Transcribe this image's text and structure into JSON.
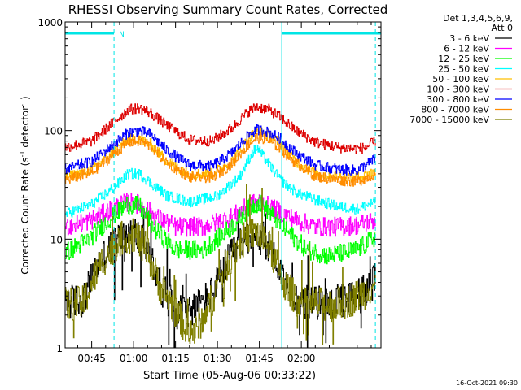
{
  "chart_data": {
    "type": "line",
    "title": "RHESSI Observing Summary Count Rates, Corrected",
    "xlabel": "Start Time (05-Aug-06 00:33:22)",
    "ylabel_main": "Corrected Count Rate (s",
    "ylabel_sup1": "-1",
    "ylabel_mid": " detector",
    "ylabel_sup2": "-1",
    "ylabel_end": ")",
    "y_scale": "log",
    "ylim": [
      1,
      1000
    ],
    "xlim_minutes": [
      35.5,
      148.5
    ],
    "y_ticks": [
      {
        "value": 1,
        "label": "1"
      },
      {
        "value": 10,
        "label": "10"
      },
      {
        "value": 100,
        "label": "100"
      },
      {
        "value": 1000,
        "label": "1000"
      }
    ],
    "x_ticks": [
      {
        "value": 45,
        "label": "00:45"
      },
      {
        "value": 60,
        "label": "01:00"
      },
      {
        "value": 75,
        "label": "01:15"
      },
      {
        "value": 90,
        "label": "01:30"
      },
      {
        "value": 105,
        "label": "01:45"
      },
      {
        "value": 120,
        "label": "02:00"
      }
    ],
    "legend_header": [
      "Det 1,3,4,5,6,9,",
      "Att 0"
    ],
    "timestamp": "16-Oct-2021 09:30",
    "annotation_label": "N",
    "annotation_color": "#00e5e5",
    "night_bars": [
      [
        35.5,
        53.0
      ],
      [
        113.0,
        148.5
      ]
    ],
    "dashed_lines": [
      53.0,
      146.5
    ],
    "solid_lines": [
      35.5,
      113.0
    ],
    "series": [
      {
        "name": "3 - 6 keV",
        "color": "#000000",
        "anchors": [
          [
            35.5,
            2.6
          ],
          [
            42,
            2.8
          ],
          [
            48,
            6.5
          ],
          [
            55,
            10.5
          ],
          [
            60,
            11.5
          ],
          [
            64,
            9
          ],
          [
            70,
            3.5
          ],
          [
            75,
            2.2
          ],
          [
            82,
            2.3
          ],
          [
            88,
            3.2
          ],
          [
            94,
            6.5
          ],
          [
            100,
            10.5
          ],
          [
            104,
            11.5
          ],
          [
            108,
            9
          ],
          [
            114,
            4
          ],
          [
            120,
            2.6
          ],
          [
            126,
            2.6
          ],
          [
            131,
            2.6
          ],
          [
            134,
            2.7
          ],
          [
            137,
            2.8
          ],
          [
            140,
            3.2
          ],
          [
            143,
            3.5
          ],
          [
            146.5,
            4.2
          ]
        ]
      },
      {
        "name": "6 - 12 keV",
        "color": "#ff00ff",
        "anchors": [
          [
            35.5,
            13
          ],
          [
            45,
            15
          ],
          [
            52,
            19
          ],
          [
            58,
            22
          ],
          [
            62,
            21
          ],
          [
            68,
            16
          ],
          [
            75,
            13
          ],
          [
            85,
            13
          ],
          [
            95,
            16
          ],
          [
            102,
            21
          ],
          [
            105,
            22
          ],
          [
            110,
            19
          ],
          [
            118,
            15
          ],
          [
            125,
            13
          ],
          [
            133,
            13
          ],
          [
            140,
            13.5
          ],
          [
            146.5,
            15
          ]
        ]
      },
      {
        "name": "12 - 25 keV",
        "color": "#00ff00",
        "anchors": [
          [
            35.5,
            7.5
          ],
          [
            44,
            10
          ],
          [
            52,
            16
          ],
          [
            58,
            21
          ],
          [
            62,
            20
          ],
          [
            68,
            12
          ],
          [
            75,
            8
          ],
          [
            85,
            8
          ],
          [
            95,
            13
          ],
          [
            102,
            20
          ],
          [
            105,
            22
          ],
          [
            110,
            16
          ],
          [
            116,
            11
          ],
          [
            122,
            8
          ],
          [
            130,
            7
          ],
          [
            140,
            8
          ],
          [
            146.5,
            10.5
          ]
        ]
      },
      {
        "name": "25 - 50 keV",
        "color": "#00ffff",
        "anchors": [
          [
            35.5,
            17
          ],
          [
            45,
            21
          ],
          [
            53,
            30
          ],
          [
            58,
            40
          ],
          [
            62,
            40
          ],
          [
            66,
            33
          ],
          [
            72,
            25
          ],
          [
            80,
            22
          ],
          [
            90,
            25
          ],
          [
            98,
            38
          ],
          [
            102,
            60
          ],
          [
            104,
            70
          ],
          [
            107,
            55
          ],
          [
            112,
            36
          ],
          [
            118,
            27
          ],
          [
            125,
            23
          ],
          [
            133,
            20
          ],
          [
            140,
            19
          ],
          [
            146.5,
            22
          ]
        ]
      },
      {
        "name": "50 - 100 keV",
        "color": "#ffbf00",
        "anchors": [
          [
            35.5,
            37
          ],
          [
            45,
            44
          ],
          [
            52,
            62
          ],
          [
            58,
            83
          ],
          [
            62,
            85
          ],
          [
            66,
            75
          ],
          [
            72,
            52
          ],
          [
            80,
            40
          ],
          [
            88,
            40
          ],
          [
            95,
            52
          ],
          [
            101,
            85
          ],
          [
            104,
            98
          ],
          [
            107,
            95
          ],
          [
            112,
            78
          ],
          [
            118,
            52
          ],
          [
            125,
            40
          ],
          [
            133,
            38
          ],
          [
            140,
            37
          ],
          [
            146.5,
            42
          ]
        ]
      },
      {
        "name": "100 - 300 keV",
        "color": "#dd0000",
        "anchors": [
          [
            35.5,
            70
          ],
          [
            45,
            80
          ],
          [
            52,
            115
          ],
          [
            58,
            155
          ],
          [
            62,
            162
          ],
          [
            66,
            145
          ],
          [
            72,
            110
          ],
          [
            80,
            82
          ],
          [
            88,
            80
          ],
          [
            95,
            105
          ],
          [
            101,
            150
          ],
          [
            104,
            165
          ],
          [
            108,
            158
          ],
          [
            112,
            135
          ],
          [
            118,
            100
          ],
          [
            125,
            78
          ],
          [
            133,
            70
          ],
          [
            140,
            68
          ],
          [
            143,
            70
          ],
          [
            146.5,
            80
          ]
        ]
      },
      {
        "name": "300 - 800 keV",
        "color": "#0000ff",
        "anchors": [
          [
            35.5,
            44
          ],
          [
            45,
            52
          ],
          [
            52,
            72
          ],
          [
            58,
            96
          ],
          [
            62,
            100
          ],
          [
            66,
            92
          ],
          [
            72,
            65
          ],
          [
            80,
            48
          ],
          [
            88,
            47
          ],
          [
            95,
            62
          ],
          [
            101,
            90
          ],
          [
            104,
            102
          ],
          [
            107,
            99
          ],
          [
            112,
            86
          ],
          [
            118,
            62
          ],
          [
            125,
            48
          ],
          [
            133,
            44
          ],
          [
            140,
            43
          ],
          [
            146.5,
            55
          ]
        ]
      },
      {
        "name": "800 - 7000 keV",
        "color": "#ff8c00",
        "anchors": [
          [
            35.5,
            35
          ],
          [
            45,
            41
          ],
          [
            52,
            58
          ],
          [
            58,
            78
          ],
          [
            62,
            80
          ],
          [
            66,
            72
          ],
          [
            72,
            50
          ],
          [
            80,
            37
          ],
          [
            88,
            37
          ],
          [
            95,
            49
          ],
          [
            101,
            75
          ],
          [
            104,
            86
          ],
          [
            107,
            84
          ],
          [
            112,
            70
          ],
          [
            118,
            50
          ],
          [
            125,
            38
          ],
          [
            133,
            35
          ],
          [
            140,
            34
          ],
          [
            146.5,
            40
          ]
        ]
      },
      {
        "name": "7000 - 15000 keV",
        "color": "#808000",
        "anchors": [
          [
            35.5,
            2.5
          ],
          [
            42,
            2.6
          ],
          [
            48,
            6
          ],
          [
            55,
            10
          ],
          [
            60,
            11
          ],
          [
            64,
            8.5
          ],
          [
            70,
            3.4
          ],
          [
            75,
            2.2
          ],
          [
            78,
            1.6
          ],
          [
            82,
            1.4
          ],
          [
            88,
            2.8
          ],
          [
            94,
            6.5
          ],
          [
            100,
            10.5
          ],
          [
            104,
            11.5
          ],
          [
            108,
            9
          ],
          [
            114,
            3.8
          ],
          [
            120,
            2.5
          ],
          [
            126,
            2.5
          ],
          [
            131,
            2.5
          ],
          [
            134,
            2.6
          ],
          [
            137,
            2.7
          ],
          [
            140,
            3
          ],
          [
            143,
            3.3
          ],
          [
            146.5,
            4
          ]
        ]
      }
    ]
  }
}
